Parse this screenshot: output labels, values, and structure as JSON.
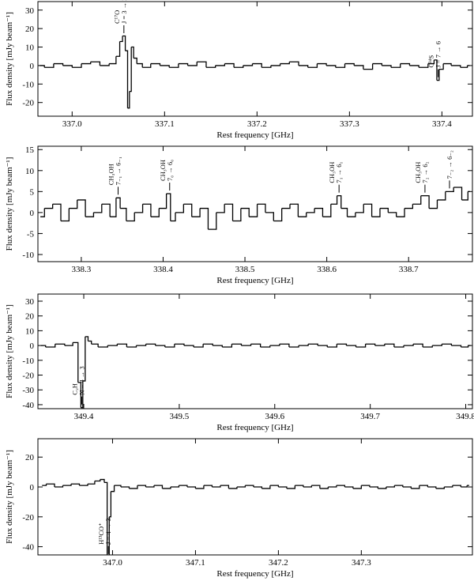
{
  "chart_data": [
    {
      "type": "line",
      "drawstyle": "steps-mid",
      "color": "#000000",
      "xlabel": "Rest frequency [GHz]",
      "ylabel": "Flux density [mJy beam⁻¹]",
      "xlim": [
        336.963,
        337.433
      ],
      "ylim": [
        -27.4,
        34.6
      ],
      "xticks": [
        {
          "value": 337.0,
          "label": "337.0"
        },
        337.1,
        337.2,
        337.3,
        337.4
      ],
      "yticks": [
        -20,
        -10,
        0,
        10,
        20,
        30
      ],
      "x": [
        336.965,
        336.975,
        336.985,
        336.995,
        337.005,
        337.015,
        337.025,
        337.035,
        337.045,
        337.05,
        337.053,
        337.056,
        337.059,
        337.061,
        337.063,
        337.065,
        337.068,
        337.072,
        337.08,
        337.09,
        337.1,
        337.11,
        337.12,
        337.13,
        337.14,
        337.15,
        337.16,
        337.17,
        337.18,
        337.19,
        337.2,
        337.21,
        337.22,
        337.23,
        337.24,
        337.25,
        337.26,
        337.27,
        337.28,
        337.29,
        337.3,
        337.31,
        337.32,
        337.33,
        337.34,
        337.35,
        337.36,
        337.37,
        337.38,
        337.39,
        337.393,
        337.396,
        337.398,
        337.405,
        337.415,
        337.425,
        337.43
      ],
      "values": [
        0,
        -1,
        1,
        0,
        -1,
        1,
        2,
        0,
        1,
        5,
        13,
        16,
        8,
        -23,
        -14,
        10,
        4,
        1,
        -1,
        1,
        0,
        -1,
        1,
        0,
        2,
        -1,
        0,
        1,
        -1,
        0,
        1,
        -1,
        0,
        1,
        2,
        0,
        -1,
        1,
        0,
        -1,
        1,
        0,
        -2,
        1,
        0,
        -1,
        1,
        0,
        -1,
        1,
        3,
        -8,
        -2,
        1,
        0,
        -1,
        0
      ],
      "annotations": [
        {
          "x": 337.056,
          "label": [
            "C¹⁷O",
            "J = 3 → 2"
          ]
        },
        {
          "x": 337.396,
          "label": [
            "C³⁴S",
            "J = 7 → 6"
          ]
        }
      ]
    },
    {
      "type": "line",
      "drawstyle": "steps-mid",
      "color": "#000000",
      "xlabel": "Rest frequency [GHz]",
      "ylabel": "Flux density [mJy beam⁻¹]",
      "xlim": [
        338.247,
        338.778
      ],
      "ylim": [
        -11.7,
        15.8
      ],
      "xticks": [
        338.3,
        338.4,
        338.5,
        338.6,
        338.7
      ],
      "yticks": [
        -10,
        -5,
        0,
        5,
        10,
        15
      ],
      "x": [
        338.25,
        338.26,
        338.27,
        338.28,
        338.29,
        338.3,
        338.31,
        338.32,
        338.33,
        338.34,
        338.345,
        338.35,
        338.36,
        338.37,
        338.38,
        338.39,
        338.4,
        338.408,
        338.41,
        338.42,
        338.43,
        338.44,
        338.45,
        338.46,
        338.47,
        338.48,
        338.49,
        338.5,
        338.51,
        338.52,
        338.53,
        338.54,
        338.55,
        338.56,
        338.57,
        338.58,
        338.59,
        338.6,
        338.61,
        338.615,
        338.62,
        338.63,
        338.64,
        338.65,
        338.66,
        338.67,
        338.68,
        338.69,
        338.7,
        338.71,
        338.72,
        338.73,
        338.74,
        338.75,
        338.76,
        338.77,
        338.775
      ],
      "values": [
        -1,
        1,
        2,
        -2,
        1,
        3,
        -1,
        0,
        2,
        -1,
        3.5,
        1,
        -2,
        0,
        2,
        -1,
        1,
        4.5,
        -2,
        0,
        2,
        -1,
        1,
        -4,
        0,
        2,
        -2,
        1,
        -1,
        2,
        0,
        -2,
        1,
        2,
        -1,
        0,
        1,
        -1,
        2,
        4,
        1,
        -1,
        0,
        2,
        -1,
        1,
        0,
        -1,
        1,
        2,
        4,
        1,
        3,
        5,
        6,
        3,
        5
      ],
      "annotations": [
        {
          "x": 338.345,
          "label": [
            "CH₃OH",
            "7₋₁ → 6₋₁"
          ]
        },
        {
          "x": 338.408,
          "label": [
            "CH₃OH",
            "7₀ → 6₀"
          ]
        },
        {
          "x": 338.615,
          "label": [
            "CH₃OH",
            "7₁ → 6₁"
          ]
        },
        {
          "x": 338.72,
          "label": [
            "CH₃OH",
            "7₂ → 6₂"
          ]
        },
        {
          "x": 338.75,
          "label": [
            "7₋₂ → 6₋₂"
          ]
        }
      ]
    },
    {
      "type": "line",
      "drawstyle": "steps-mid",
      "color": "#000000",
      "xlabel": "Rest frequency [GHz]",
      "ylabel": "Flux density [mJy beam⁻¹]",
      "xlim": [
        349.352,
        349.807
      ],
      "ylim": [
        -42.7,
        34.8
      ],
      "xticks": [
        349.4,
        349.5,
        349.6,
        349.7,
        349.8
      ],
      "yticks": [
        -40,
        -30,
        -20,
        -10,
        0,
        10,
        20,
        30
      ],
      "x": [
        349.355,
        349.365,
        349.375,
        349.385,
        349.392,
        349.396,
        349.398,
        349.4,
        349.403,
        349.406,
        349.41,
        349.42,
        349.43,
        349.44,
        349.45,
        349.46,
        349.47,
        349.48,
        349.49,
        349.5,
        349.51,
        349.52,
        349.53,
        349.54,
        349.55,
        349.56,
        349.57,
        349.58,
        349.59,
        349.6,
        349.61,
        349.62,
        349.63,
        349.64,
        349.65,
        349.66,
        349.67,
        349.68,
        349.69,
        349.7,
        349.71,
        349.72,
        349.73,
        349.74,
        349.75,
        349.76,
        349.77,
        349.78,
        349.79,
        349.8,
        349.805
      ],
      "values": [
        0,
        -1,
        1,
        0,
        2,
        -25,
        -42,
        -24,
        6,
        3,
        1,
        -1,
        0,
        1,
        -1,
        0,
        1,
        0,
        -1,
        1,
        0,
        -1,
        1,
        0,
        -1,
        1,
        0,
        1,
        -1,
        0,
        1,
        -1,
        0,
        1,
        0,
        -1,
        1,
        0,
        -1,
        1,
        0,
        1,
        -1,
        0,
        1,
        -1,
        0,
        1,
        0,
        -1,
        0
      ],
      "annotations": [
        {
          "x": 349.398,
          "label": [
            "C₂H",
            "N = 4 → 3"
          ]
        }
      ]
    },
    {
      "type": "line",
      "drawstyle": "steps-mid",
      "color": "#000000",
      "xlabel": "Rest frequency [GHz]",
      "ylabel": "Flux density [mJy beam⁻¹]",
      "xlim": [
        346.91,
        347.434
      ],
      "ylim": [
        -45.5,
        32.3
      ],
      "xticks": [
        {
          "value": 347.0,
          "label": "347.0"
        },
        347.1,
        347.2,
        347.3
      ],
      "yticks": [
        -40,
        -20,
        0,
        20
      ],
      "x": [
        346.915,
        346.925,
        346.935,
        346.945,
        346.955,
        346.965,
        346.975,
        346.982,
        346.988,
        346.992,
        346.995,
        346.997,
        346.999,
        347.005,
        347.015,
        347.025,
        347.035,
        347.045,
        347.055,
        347.065,
        347.075,
        347.085,
        347.095,
        347.105,
        347.115,
        347.125,
        347.135,
        347.145,
        347.155,
        347.165,
        347.175,
        347.185,
        347.195,
        347.205,
        347.215,
        347.225,
        347.235,
        347.245,
        347.255,
        347.265,
        347.275,
        347.285,
        347.295,
        347.305,
        347.315,
        347.325,
        347.335,
        347.345,
        347.355,
        347.365,
        347.375,
        347.385,
        347.395,
        347.405,
        347.415,
        347.425,
        347.43
      ],
      "values": [
        1,
        2,
        0,
        1,
        2,
        1,
        2,
        4,
        5,
        3,
        -47,
        -20,
        -3,
        1,
        0,
        -1,
        1,
        0,
        1,
        -1,
        0,
        1,
        0,
        -1,
        1,
        0,
        1,
        -1,
        0,
        1,
        0,
        -1,
        1,
        0,
        -1,
        1,
        0,
        1,
        -1,
        0,
        1,
        0,
        -1,
        1,
        0,
        -1,
        0,
        1,
        0,
        -1,
        1,
        0,
        -1,
        0,
        1,
        0,
        1
      ],
      "annotations": [
        {
          "x": 346.995,
          "label": [
            "H¹³CO⁺",
            "J = 4 → 3"
          ]
        }
      ]
    }
  ]
}
